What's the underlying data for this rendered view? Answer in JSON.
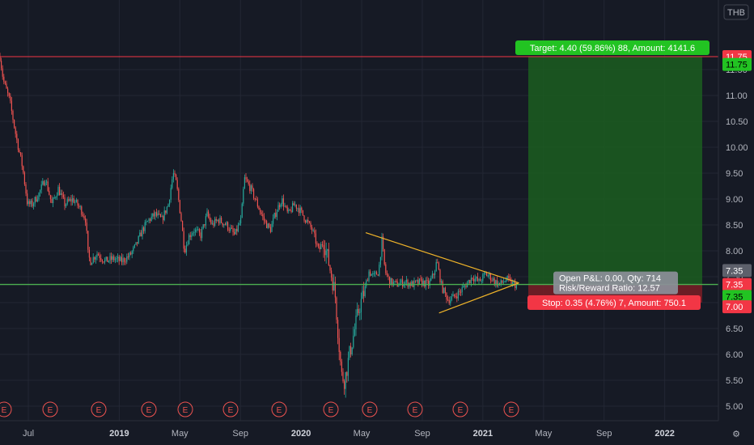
{
  "currency": "THB",
  "earnings_glyph": "E",
  "chart_data": {
    "type": "candlestick",
    "currency": "THB",
    "ylim": [
      4.8,
      12.1
    ],
    "y_ticks": [
      5.0,
      5.5,
      6.0,
      6.5,
      7.0,
      7.5,
      8.0,
      8.5,
      9.0,
      9.5,
      10.0,
      10.5,
      11.0,
      11.5
    ],
    "x_ticks": [
      {
        "label": "Jul",
        "bold": false
      },
      {
        "label": "2019",
        "bold": true
      },
      {
        "label": "May",
        "bold": false
      },
      {
        "label": "Sep",
        "bold": false
      },
      {
        "label": "2020",
        "bold": true
      },
      {
        "label": "May",
        "bold": false
      },
      {
        "label": "Sep",
        "bold": false
      },
      {
        "label": "2021",
        "bold": true
      },
      {
        "label": "May",
        "bold": false
      },
      {
        "label": "Sep",
        "bold": false
      },
      {
        "label": "2022",
        "bold": true
      }
    ],
    "price_path_anchors": [
      [
        0,
        11.75
      ],
      [
        4,
        11.3
      ],
      [
        12,
        10.9
      ],
      [
        20,
        10.2
      ],
      [
        28,
        9.6
      ],
      [
        34,
        8.9
      ],
      [
        40,
        8.9
      ],
      [
        48,
        9.1
      ],
      [
        56,
        9.4
      ],
      [
        64,
        8.9
      ],
      [
        72,
        9.2
      ],
      [
        80,
        8.9
      ],
      [
        90,
        9.0
      ],
      [
        100,
        8.8
      ],
      [
        106,
        8.6
      ],
      [
        109,
        7.9
      ],
      [
        112,
        7.8
      ],
      [
        120,
        7.95
      ],
      [
        130,
        7.8
      ],
      [
        140,
        7.85
      ],
      [
        150,
        7.8
      ],
      [
        160,
        7.9
      ],
      [
        168,
        8.1
      ],
      [
        176,
        8.4
      ],
      [
        184,
        8.6
      ],
      [
        192,
        8.7
      ],
      [
        200,
        8.6
      ],
      [
        208,
        8.9
      ],
      [
        214,
        9.5
      ],
      [
        218,
        9.3
      ],
      [
        224,
        8.6
      ],
      [
        228,
        8.0
      ],
      [
        234,
        8.3
      ],
      [
        240,
        8.4
      ],
      [
        248,
        8.3
      ],
      [
        256,
        8.7
      ],
      [
        262,
        8.5
      ],
      [
        270,
        8.6
      ],
      [
        280,
        8.5
      ],
      [
        290,
        8.3
      ],
      [
        298,
        8.6
      ],
      [
        302,
        9.4
      ],
      [
        310,
        9.2
      ],
      [
        318,
        8.9
      ],
      [
        326,
        8.6
      ],
      [
        334,
        8.4
      ],
      [
        340,
        8.7
      ],
      [
        348,
        9.0
      ],
      [
        356,
        8.7
      ],
      [
        364,
        8.9
      ],
      [
        370,
        8.8
      ],
      [
        378,
        8.6
      ],
      [
        386,
        8.4
      ],
      [
        394,
        8.0
      ],
      [
        400,
        8.2
      ],
      [
        406,
        7.8
      ],
      [
        410,
        7.5
      ],
      [
        414,
        7.2
      ],
      [
        418,
        6.4
      ],
      [
        422,
        5.6
      ],
      [
        426,
        5.5
      ],
      [
        432,
        6.0
      ],
      [
        436,
        6.3
      ],
      [
        440,
        6.6
      ],
      [
        444,
        6.9
      ],
      [
        450,
        7.2
      ],
      [
        456,
        7.6
      ],
      [
        462,
        7.5
      ],
      [
        468,
        7.6
      ],
      [
        472,
        8.2
      ],
      [
        476,
        7.6
      ],
      [
        482,
        7.4
      ],
      [
        490,
        7.35
      ],
      [
        500,
        7.4
      ],
      [
        510,
        7.35
      ],
      [
        520,
        7.4
      ],
      [
        530,
        7.35
      ],
      [
        536,
        7.55
      ],
      [
        540,
        7.8
      ],
      [
        546,
        7.3
      ],
      [
        554,
        7.05
      ],
      [
        560,
        7.1
      ],
      [
        568,
        7.2
      ],
      [
        576,
        7.35
      ],
      [
        584,
        7.5
      ],
      [
        592,
        7.4
      ],
      [
        600,
        7.55
      ],
      [
        606,
        7.5
      ],
      [
        612,
        7.4
      ],
      [
        618,
        7.35
      ],
      [
        626,
        7.45
      ],
      [
        634,
        7.35
      ],
      [
        640,
        7.35
      ]
    ],
    "horizontal_lines": [
      {
        "price": 11.75,
        "color": "#f23645"
      },
      {
        "price": 7.35,
        "color": "#4caf50"
      }
    ],
    "triangle_pattern": {
      "color": "#f0b429",
      "upper": [
        [
          "2020-05",
          8.35
        ],
        [
          "2021-03",
          7.38
        ]
      ],
      "lower": [
        [
          "2020-10",
          6.8
        ],
        [
          "2021-03",
          7.38
        ]
      ]
    },
    "position": {
      "type": "long",
      "entry": 7.35,
      "target": 11.75,
      "stop": 7.0,
      "target_text": "Target: 4.40 (59.86%) 88, Amount: 4141.6",
      "stop_text": "Stop: 0.35 (4.76%) 7, Amount: 750.1",
      "pnl_line1": "Open P&L: 0.00, Qty: 714",
      "pnl_line2": "Risk/Reward Ratio: 12.57",
      "profit_color": "#1b5e20",
      "loss_color": "#7a1f26"
    },
    "axis_price_labels": [
      {
        "text": "11.75",
        "price": 11.75,
        "bg": "#f23645",
        "fg": "#ffffff"
      },
      {
        "text": "11.75",
        "price": 11.6,
        "bg": "#22c322",
        "fg": "#000000"
      },
      {
        "text": "7.35",
        "price": 7.62,
        "bg": "#5d606b",
        "fg": "#ffffff"
      },
      {
        "text": "7.35",
        "price": 7.35,
        "bg": "#f23645",
        "fg": "#ffffff"
      },
      {
        "text": "7.35",
        "price": 7.12,
        "bg": "#22c322",
        "fg": "#000000"
      },
      {
        "text": "7.00",
        "price": 6.92,
        "bg": "#f23645",
        "fg": "#ffffff"
      }
    ],
    "earnings_markers": 12
  }
}
